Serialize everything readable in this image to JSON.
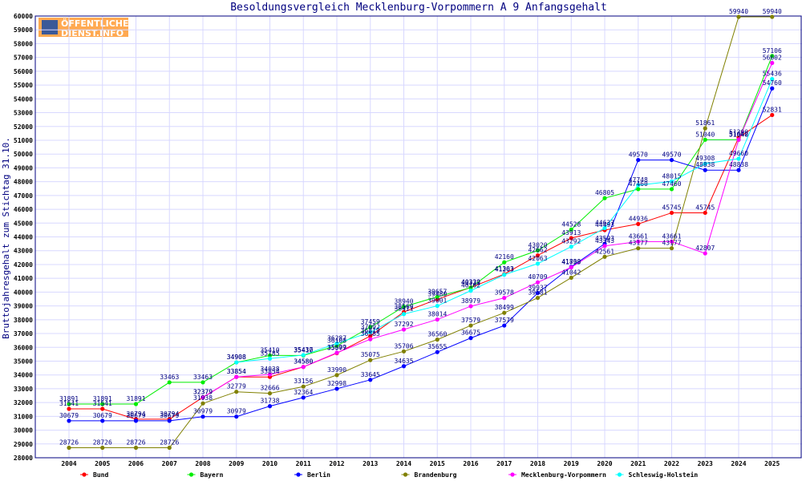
{
  "logo": {
    "line1": "ÖFFENTLICHER",
    "line2": "DIENST.INFO"
  },
  "colors": {
    "axis": "#000080",
    "grid": "#d8d8ff",
    "text": "#000080"
  },
  "chart_data": {
    "type": "line",
    "title": "Besoldungsvergleich Mecklenburg-Vorpommern A 9 Anfangsgehalt",
    "ylabel": "Bruttojahresgehalt zum Stichtag 31.10.",
    "xlabel": "",
    "ylim": [
      28000,
      60000
    ],
    "ytick_step": 1000,
    "grid": true,
    "legend_position": "bottom",
    "x": [
      "2004",
      "2005",
      "2006",
      "2007",
      "2008",
      "2009",
      "2010",
      "2011",
      "2012",
      "2013",
      "2014",
      "2015",
      "2016",
      "2017",
      "2018",
      "2019",
      "2020",
      "2021",
      "2022",
      "2023",
      "2024",
      "2025"
    ],
    "series": [
      {
        "name": "Bund",
        "color": "#ff0000",
        "values": [
          31541,
          31541,
          30794,
          30794,
          32379,
          33854,
          33854,
          34580,
          35577,
          36819,
          38560,
          39480,
          40339,
          41303,
          42662,
          43913,
          44493,
          44936,
          45745,
          45745,
          51200,
          52831
        ]
      },
      {
        "name": "Bayern",
        "color": "#00ee00",
        "values": [
          31891,
          31891,
          31891,
          33463,
          33463,
          34908,
          35410,
          35410,
          36108,
          37459,
          38940,
          39657,
          40322,
          42160,
          43020,
          44528,
          46805,
          47460,
          47460,
          51040,
          51040,
          57106
        ]
      },
      {
        "name": "Berlin",
        "color": "#0000ff",
        "values": [
          30679,
          30679,
          30679,
          30679,
          30979,
          30979,
          31738,
          32364,
          32998,
          33645,
          34635,
          35655,
          36675,
          37579,
          39937,
          41830,
          43503,
          49570,
          49570,
          48838,
          48838,
          54760
        ]
      },
      {
        "name": "Brandenburg",
        "color": "#808000",
        "values": [
          28726,
          28726,
          28726,
          28726,
          31938,
          32779,
          32666,
          33156,
          33990,
          35075,
          35706,
          36560,
          37579,
          38499,
          39581,
          41042,
          42561,
          43177,
          43177,
          51861,
          59940,
          59940
        ]
      },
      {
        "name": "Mecklenburg-Vorpommern",
        "color": "#ff00ff",
        "values": [
          null,
          null,
          null,
          null,
          32379,
          33854,
          34038,
          34580,
          35609,
          36585,
          37292,
          38014,
          38979,
          39578,
          40709,
          41793,
          43343,
          43661,
          43661,
          42807,
          51042,
          56602
        ]
      },
      {
        "name": "Schleswig-Holstein",
        "color": "#00ffff",
        "values": [
          null,
          null,
          null,
          null,
          null,
          34908,
          35185,
          35437,
          36287,
          37092,
          38411,
          39001,
          40102,
          41263,
          42063,
          43292,
          44637,
          47748,
          48015,
          49308,
          49660,
          55436
        ]
      }
    ]
  }
}
